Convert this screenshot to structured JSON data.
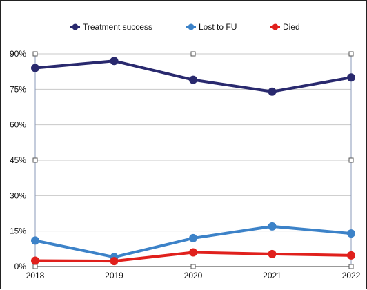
{
  "chart_data": {
    "type": "line",
    "title": "",
    "xlabel": "",
    "ylabel": "",
    "categories": [
      "2018",
      "2019",
      "2020",
      "2021",
      "2022"
    ],
    "ylim": [
      0,
      90
    ],
    "yticks": [
      0,
      15,
      30,
      45,
      60,
      75,
      90
    ],
    "ytick_labels": [
      "0%",
      "15%",
      "30%",
      "45%",
      "60%",
      "75%",
      "90%"
    ],
    "legend_position": "top",
    "grid": true,
    "series": [
      {
        "name": "Treatment success",
        "color": "#29296e",
        "values": [
          84,
          87,
          79,
          74,
          80
        ]
      },
      {
        "name": "Lost to FU",
        "color": "#3c82c8",
        "values": [
          11,
          4,
          12,
          17,
          14
        ]
      },
      {
        "name": "Died",
        "color": "#e0201c",
        "values": [
          2.5,
          2.3,
          6,
          5.3,
          4.7
        ]
      }
    ]
  }
}
